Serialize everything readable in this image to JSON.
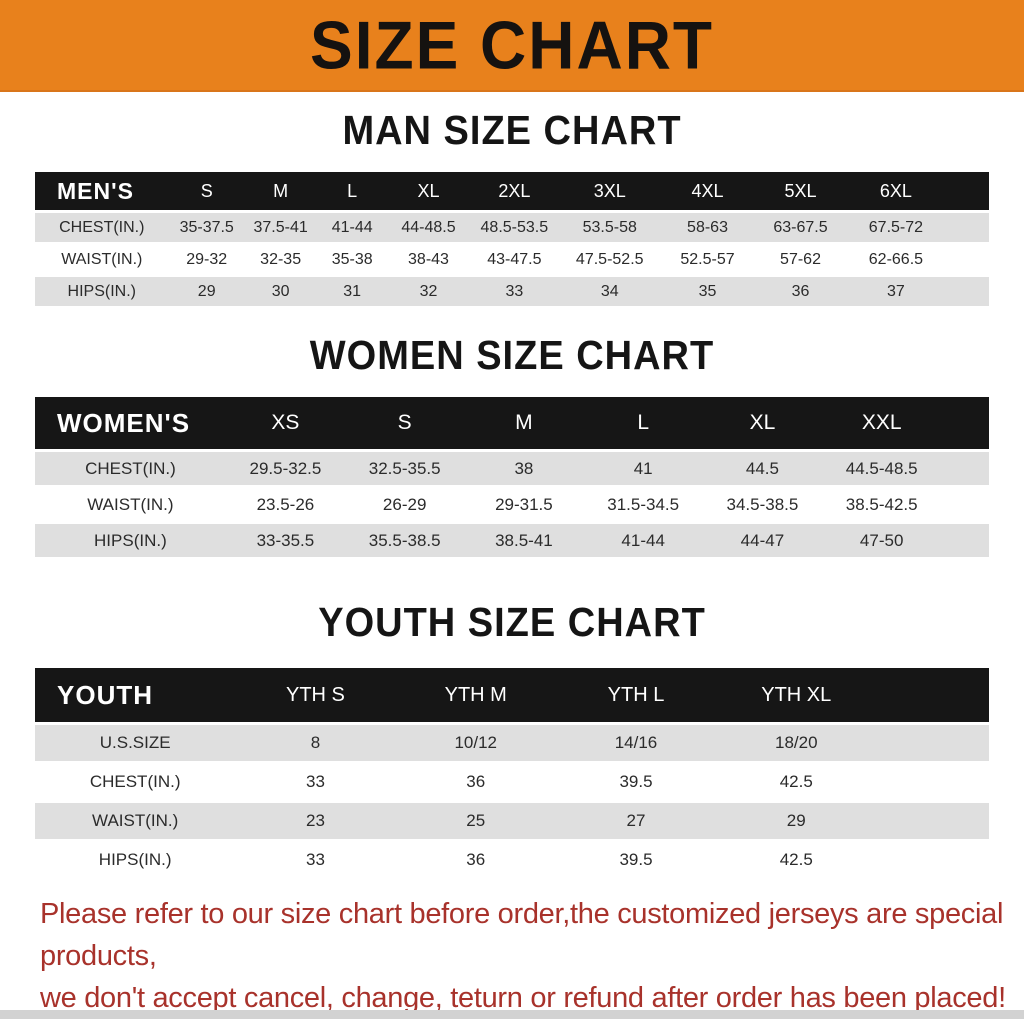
{
  "page": {
    "title": "SIZE CHART",
    "footer_line1": "Please refer to our size chart before order,the customized jerseys are special products,",
    "footer_line2": "we don't accept cancel, change, teturn or refund after order has been placed!"
  },
  "colors": {
    "accent_orange": "#E8811C",
    "header_bar_black": "#161616",
    "row_gray": "#DFDFDF",
    "footer_red": "#A8322B"
  },
  "sections": [
    {
      "id": "men",
      "heading": "MAN SIZE CHART",
      "corner_label": "MEN'S",
      "columns": [
        "S",
        "M",
        "L",
        "XL",
        "2XL",
        "3XL",
        "4XL",
        "5XL",
        "6XL"
      ],
      "rows": [
        {
          "label": "CHEST(IN.)",
          "values": [
            "35-37.5",
            "37.5-41",
            "41-44",
            "44-48.5",
            "48.5-53.5",
            "53.5-58",
            "58-63",
            "63-67.5",
            "67.5-72"
          ]
        },
        {
          "label": "WAIST(IN.)",
          "values": [
            "29-32",
            "32-35",
            "35-38",
            "38-43",
            "43-47.5",
            "47.5-52.5",
            "52.5-57",
            "57-62",
            "62-66.5"
          ]
        },
        {
          "label": "HIPS(IN.)",
          "values": [
            "29",
            "30",
            "31",
            "32",
            "33",
            "34",
            "35",
            "36",
            "37"
          ]
        }
      ]
    },
    {
      "id": "women",
      "heading": "WOMEN SIZE CHART",
      "corner_label": "WOMEN'S",
      "columns": [
        "XS",
        "S",
        "M",
        "L",
        "XL",
        "XXL"
      ],
      "rows": [
        {
          "label": "CHEST(IN.)",
          "values": [
            "29.5-32.5",
            "32.5-35.5",
            "38",
            "41",
            "44.5",
            "44.5-48.5"
          ]
        },
        {
          "label": "WAIST(IN.)",
          "values": [
            "23.5-26",
            "26-29",
            "29-31.5",
            "31.5-34.5",
            "34.5-38.5",
            "38.5-42.5"
          ]
        },
        {
          "label": "HIPS(IN.)",
          "values": [
            "33-35.5",
            "35.5-38.5",
            "38.5-41",
            "41-44",
            "44-47",
            "47-50"
          ]
        }
      ]
    },
    {
      "id": "youth",
      "heading": "YOUTH SIZE CHART",
      "corner_label": "YOUTH",
      "columns": [
        "YTH S",
        "YTH M",
        "YTH L",
        "YTH XL"
      ],
      "rows": [
        {
          "label": "U.S.SIZE",
          "values": [
            "8",
            "10/12",
            "14/16",
            "18/20"
          ]
        },
        {
          "label": "CHEST(IN.)",
          "values": [
            "33",
            "36",
            "39.5",
            "42.5"
          ]
        },
        {
          "label": "WAIST(IN.)",
          "values": [
            "23",
            "25",
            "27",
            "29"
          ]
        },
        {
          "label": "HIPS(IN.)",
          "values": [
            "33",
            "36",
            "39.5",
            "42.5"
          ]
        }
      ]
    }
  ]
}
